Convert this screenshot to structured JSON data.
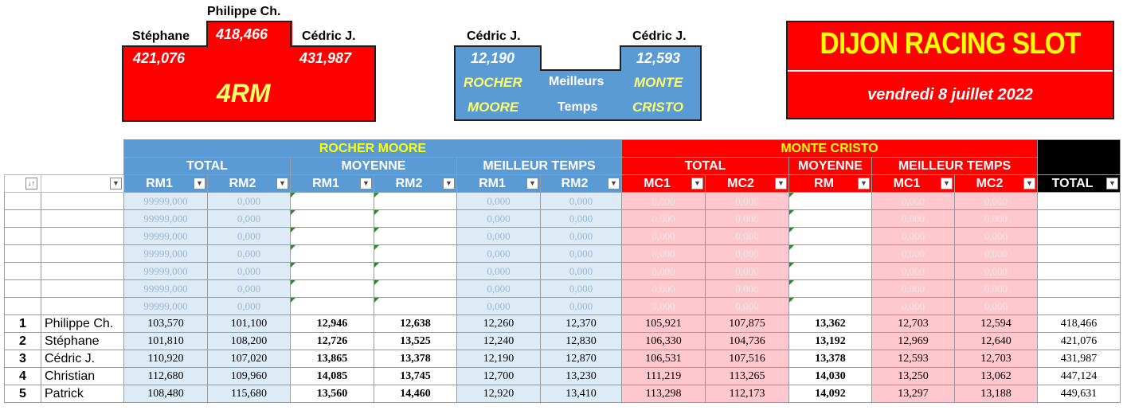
{
  "podium": {
    "first_name": "Philippe Ch.",
    "first_score": "418,466",
    "second_name": "Stéphane",
    "second_score": "421,076",
    "third_name": "Cédric J.",
    "third_score": "431,987",
    "label": "4RM"
  },
  "best_times": {
    "left_name": "Cédric J.",
    "left_time": "12,190",
    "left_track_1": "ROCHER",
    "left_track_2": "MOORE",
    "right_name": "Cédric J.",
    "right_time": "12,593",
    "right_track_1": "MONTE",
    "right_track_2": "CRISTO",
    "mid_1": "Meilleurs",
    "mid_2": "Temps"
  },
  "title": {
    "main": "DIJON RACING SLOT",
    "date": "vendredi 8 juillet 2022"
  },
  "table": {
    "group_rocher": "ROCHER MOORE",
    "group_monte": "MONTE CRISTO",
    "sub_total": "TOTAL",
    "sub_moyenne": "MOYENNE",
    "sub_meilleur": "MEILLEUR TEMPS",
    "col_sort_icon": "sort-filter-icon",
    "cols": [
      "RM1",
      "RM2",
      "RM1",
      "RM2",
      "RM1",
      "RM2",
      "MC1",
      "MC2",
      "RM",
      "MC1",
      "MC2",
      "TOTAL"
    ],
    "placeholder_rm": "99999,000",
    "placeholder_zero": "0,000",
    "rows": [
      {
        "rank": "1",
        "name": "Philippe Ch.",
        "v": [
          "103,570",
          "101,100",
          "12,946",
          "12,638",
          "12,260",
          "12,370",
          "105,921",
          "107,875",
          "13,362",
          "12,703",
          "12,594",
          "418,466"
        ]
      },
      {
        "rank": "2",
        "name": "Stéphane",
        "v": [
          "101,810",
          "108,200",
          "12,726",
          "13,525",
          "12,240",
          "12,830",
          "106,330",
          "104,736",
          "13,192",
          "12,969",
          "12,640",
          "421,076"
        ]
      },
      {
        "rank": "3",
        "name": "Cédric J.",
        "v": [
          "110,920",
          "107,020",
          "13,865",
          "13,378",
          "12,190",
          "12,870",
          "106,531",
          "107,516",
          "13,378",
          "12,593",
          "12,703",
          "431,987"
        ]
      },
      {
        "rank": "4",
        "name": "Christian",
        "v": [
          "112,680",
          "109,960",
          "14,085",
          "13,745",
          "12,700",
          "13,230",
          "111,219",
          "113,265",
          "14,030",
          "13,250",
          "13,062",
          "447,124"
        ]
      },
      {
        "rank": "5",
        "name": "Patrick",
        "v": [
          "108,480",
          "115,680",
          "13,560",
          "14,460",
          "12,920",
          "13,410",
          "113,298",
          "112,173",
          "14,092",
          "13,297",
          "13,188",
          "449,631"
        ]
      }
    ]
  },
  "colors": {
    "red": "#ff0000",
    "blue": "#5b9bd5",
    "light_blue": "#ddebf7",
    "pink": "#ffc7ce",
    "yellow": "#ffff00"
  }
}
